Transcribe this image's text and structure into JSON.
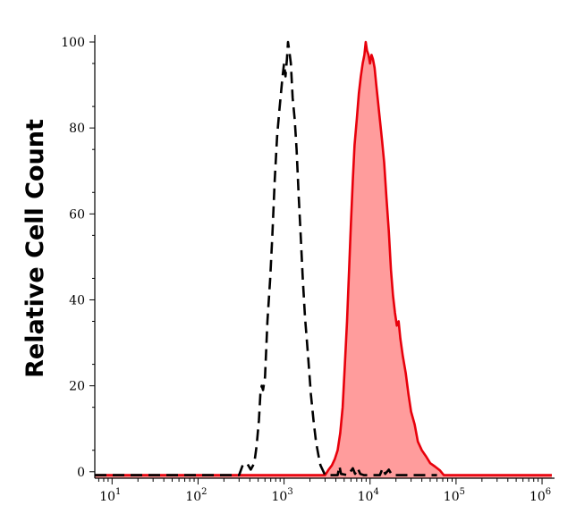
{
  "chart_data": {
    "type": "area",
    "title": "",
    "xlabel": "",
    "ylabel": "Relative Cell Count",
    "x_scale": "log",
    "xlim": [
      6.3,
      1300000
    ],
    "ylim": [
      -1.5,
      100
    ],
    "grid": false,
    "legend": "none",
    "x_ticks": [
      {
        "base": "10",
        "exp": "1",
        "value": 10
      },
      {
        "base": "10",
        "exp": "2",
        "value": 100
      },
      {
        "base": "10",
        "exp": "3",
        "value": 1000
      },
      {
        "base": "10",
        "exp": "4",
        "value": 10000
      },
      {
        "base": "10",
        "exp": "5",
        "value": 100000
      },
      {
        "base": "10",
        "exp": "6",
        "value": 1000000
      }
    ],
    "y_ticks": [
      {
        "label": "0",
        "value": 0
      },
      {
        "label": "20",
        "value": 20
      },
      {
        "label": "40",
        "value": 40
      },
      {
        "label": "60",
        "value": 60
      },
      {
        "label": "80",
        "value": 80
      },
      {
        "label": "100",
        "value": 100
      }
    ],
    "colors": {
      "stained_line": "#e8000b",
      "stained_fill": "#ff9c9c",
      "control_line": "#000000",
      "axis": "#000000"
    },
    "series": [
      {
        "style": "dashed-black",
        "points": [
          [
            6.3,
            -0.8
          ],
          [
            300,
            -0.8
          ],
          [
            330,
            1.5
          ],
          [
            370,
            2
          ],
          [
            410,
            0.5
          ],
          [
            450,
            2
          ],
          [
            480,
            6
          ],
          [
            510,
            12
          ],
          [
            530,
            18
          ],
          [
            550,
            20
          ],
          [
            570,
            19
          ],
          [
            600,
            22
          ],
          [
            640,
            35
          ],
          [
            690,
            45
          ],
          [
            730,
            55
          ],
          [
            780,
            68
          ],
          [
            830,
            78
          ],
          [
            880,
            84
          ],
          [
            920,
            88
          ],
          [
            960,
            92
          ],
          [
            1000,
            95
          ],
          [
            1040,
            92
          ],
          [
            1080,
            96
          ],
          [
            1110,
            100
          ],
          [
            1150,
            98
          ],
          [
            1200,
            95
          ],
          [
            1260,
            87
          ],
          [
            1330,
            82
          ],
          [
            1400,
            75
          ],
          [
            1480,
            64
          ],
          [
            1560,
            55
          ],
          [
            1650,
            45
          ],
          [
            1750,
            36
          ],
          [
            1850,
            30
          ],
          [
            1950,
            24
          ],
          [
            2050,
            18
          ],
          [
            2200,
            12
          ],
          [
            2350,
            7
          ],
          [
            2500,
            4
          ],
          [
            2650,
            1.5
          ],
          [
            2800,
            0.5
          ],
          [
            3000,
            -0.8
          ],
          [
            4200,
            -0.8
          ],
          [
            4400,
            1.3
          ],
          [
            4600,
            -0.5
          ],
          [
            5500,
            -0.8
          ],
          [
            6300,
            0.8
          ],
          [
            6700,
            -0.5
          ],
          [
            7200,
            0.8
          ],
          [
            7700,
            -0.5
          ],
          [
            8500,
            -0.8
          ],
          [
            13000,
            -0.8
          ],
          [
            14000,
            0.8
          ],
          [
            15000,
            -0.5
          ],
          [
            16500,
            0.5
          ],
          [
            18000,
            -0.8
          ],
          [
            60000,
            -0.8
          ]
        ]
      },
      {
        "style": "filled-red",
        "points": [
          [
            6.3,
            -0.8
          ],
          [
            3000,
            -0.8
          ],
          [
            3300,
            0.5
          ],
          [
            3600,
            1.5
          ],
          [
            3900,
            3
          ],
          [
            4200,
            5
          ],
          [
            4500,
            9
          ],
          [
            4800,
            15
          ],
          [
            5100,
            25
          ],
          [
            5400,
            35
          ],
          [
            5700,
            47
          ],
          [
            6000,
            58
          ],
          [
            6300,
            68
          ],
          [
            6600,
            76
          ],
          [
            7000,
            82
          ],
          [
            7400,
            88
          ],
          [
            7800,
            92
          ],
          [
            8200,
            95
          ],
          [
            8600,
            97
          ],
          [
            8900,
            100
          ],
          [
            9200,
            98
          ],
          [
            9600,
            97
          ],
          [
            10000,
            95
          ],
          [
            10400,
            97
          ],
          [
            10800,
            96
          ],
          [
            11300,
            94
          ],
          [
            11800,
            90
          ],
          [
            12400,
            86
          ],
          [
            13000,
            82
          ],
          [
            13800,
            77
          ],
          [
            14600,
            72
          ],
          [
            15500,
            64
          ],
          [
            16500,
            56
          ],
          [
            17500,
            47
          ],
          [
            18500,
            41
          ],
          [
            19500,
            37
          ],
          [
            20500,
            34
          ],
          [
            21500,
            35
          ],
          [
            22500,
            31
          ],
          [
            24000,
            27
          ],
          [
            26000,
            23
          ],
          [
            28000,
            18
          ],
          [
            30000,
            14
          ],
          [
            33000,
            11
          ],
          [
            36000,
            7
          ],
          [
            40000,
            5
          ],
          [
            45000,
            3.5
          ],
          [
            50000,
            2
          ],
          [
            57000,
            1.2
          ],
          [
            65000,
            0.3
          ],
          [
            72000,
            -0.8
          ],
          [
            1300000,
            -0.8
          ]
        ]
      }
    ]
  }
}
